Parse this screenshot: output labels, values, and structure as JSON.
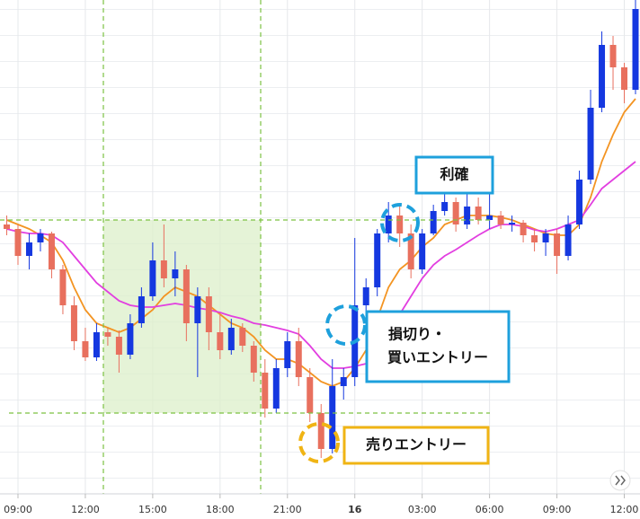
{
  "chart_data": {
    "type": "candlestick",
    "x": [
      8.5,
      9,
      9.5,
      10,
      10.5,
      11,
      11.5,
      12,
      12.5,
      13,
      13.5,
      14,
      14.5,
      15,
      15.5,
      16,
      16.5,
      17,
      17.5,
      18,
      18.5,
      19,
      19.5,
      20,
      20.5,
      21,
      21.5,
      22,
      22.5,
      23,
      23.5,
      24,
      24.5,
      25,
      25.5,
      26,
      26.5,
      27,
      27.5,
      28,
      28.5,
      29,
      29.5,
      30,
      30.5,
      31,
      31.5,
      32,
      32.5,
      33,
      33.5,
      34,
      34.5,
      35,
      35.5,
      36,
      36.5
    ],
    "open": [
      350,
      345,
      315,
      330,
      340,
      300,
      260,
      220,
      202,
      230,
      225,
      205,
      240,
      270,
      310,
      290,
      300,
      240,
      270,
      230,
      210,
      235,
      215,
      185,
      145,
      190,
      220,
      180,
      140,
      100,
      170,
      180,
      260,
      280,
      340,
      360,
      340,
      300,
      340,
      365,
      375,
      350,
      370,
      355,
      360,
      350,
      352,
      338,
      330,
      340,
      315,
      350,
      400,
      480,
      550,
      525,
      500
    ],
    "high": [
      360,
      350,
      340,
      345,
      342,
      305,
      270,
      235,
      240,
      235,
      232,
      250,
      280,
      330,
      350,
      320,
      305,
      280,
      280,
      250,
      245,
      240,
      220,
      200,
      200,
      230,
      235,
      190,
      150,
      200,
      190,
      335,
      290,
      345,
      375,
      370,
      350,
      345,
      372,
      385,
      380,
      385,
      380,
      385,
      365,
      360,
      355,
      345,
      345,
      345,
      360,
      410,
      500,
      565,
      560,
      530,
      600
    ],
    "low": [
      338,
      305,
      300,
      320,
      290,
      250,
      210,
      198,
      198,
      215,
      185,
      200,
      235,
      265,
      280,
      270,
      220,
      180,
      210,
      200,
      205,
      208,
      175,
      135,
      140,
      180,
      170,
      130,
      90,
      95,
      155,
      170,
      240,
      270,
      330,
      325,
      290,
      295,
      338,
      360,
      342,
      345,
      350,
      345,
      345,
      342,
      330,
      320,
      315,
      295,
      310,
      345,
      395,
      475,
      500,
      485,
      495
    ],
    "close": [
      345,
      315,
      330,
      340,
      300,
      260,
      220,
      202,
      230,
      225,
      205,
      240,
      270,
      310,
      290,
      300,
      240,
      270,
      230,
      210,
      235,
      215,
      185,
      145,
      190,
      220,
      180,
      140,
      100,
      170,
      180,
      260,
      280,
      340,
      360,
      340,
      300,
      340,
      365,
      375,
      350,
      370,
      355,
      360,
      350,
      352,
      338,
      330,
      340,
      315,
      350,
      400,
      480,
      550,
      525,
      500,
      590
    ],
    "up_color": "#1538e0",
    "down_color": "#e8705e",
    "overlays": [
      {
        "color": "#f39422",
        "values": [
          355,
          350,
          345,
          338,
          330,
          310,
          280,
          255,
          240,
          235,
          230,
          235,
          245,
          255,
          270,
          280,
          275,
          270,
          260,
          250,
          240,
          235,
          225,
          210,
          200,
          200,
          195,
          185,
          175,
          170,
          175,
          190,
          210,
          245,
          280,
          300,
          310,
          325,
          335,
          350,
          355,
          360,
          360,
          360,
          358,
          355,
          350,
          345,
          340,
          338,
          338,
          350,
          380,
          420,
          450,
          475,
          490
        ]
      },
      {
        "color": "#e23fe0",
        "values": [
          345,
          342,
          340,
          340,
          338,
          330,
          315,
          300,
          285,
          275,
          265,
          260,
          258,
          258,
          260,
          262,
          260,
          257,
          255,
          252,
          248,
          245,
          240,
          238,
          235,
          232,
          228,
          215,
          200,
          190,
          190,
          192,
          195,
          205,
          225,
          250,
          270,
          290,
          305,
          315,
          322,
          330,
          338,
          345,
          350,
          350,
          348,
          344,
          342,
          345,
          350,
          355,
          372,
          390,
          400,
          410,
          420
        ]
      }
    ],
    "xlim": [
      8.2,
      36.7
    ],
    "ylim": [
      52,
      600
    ],
    "xticks": [
      {
        "value": 9,
        "label": "09:00"
      },
      {
        "value": 12,
        "label": "12:00"
      },
      {
        "value": 15,
        "label": "15:00"
      },
      {
        "value": 18,
        "label": "18:00"
      },
      {
        "value": 21,
        "label": "21:00"
      },
      {
        "value": 24,
        "label": "16"
      },
      {
        "value": 27,
        "label": "03:00"
      },
      {
        "value": 30,
        "label": "06:00"
      },
      {
        "value": 33,
        "label": "09:00"
      },
      {
        "value": 36,
        "label": "12:00"
      }
    ],
    "grid": true,
    "annotations": [
      {
        "lines": [
          "利確"
        ],
        "color": "#1ea0dc"
      },
      {
        "lines": [
          "損切り・",
          "買いエントリー"
        ],
        "color": "#1ea0dc"
      },
      {
        "lines": [
          "売りエントリー"
        ],
        "color": "#f0b414"
      }
    ]
  }
}
